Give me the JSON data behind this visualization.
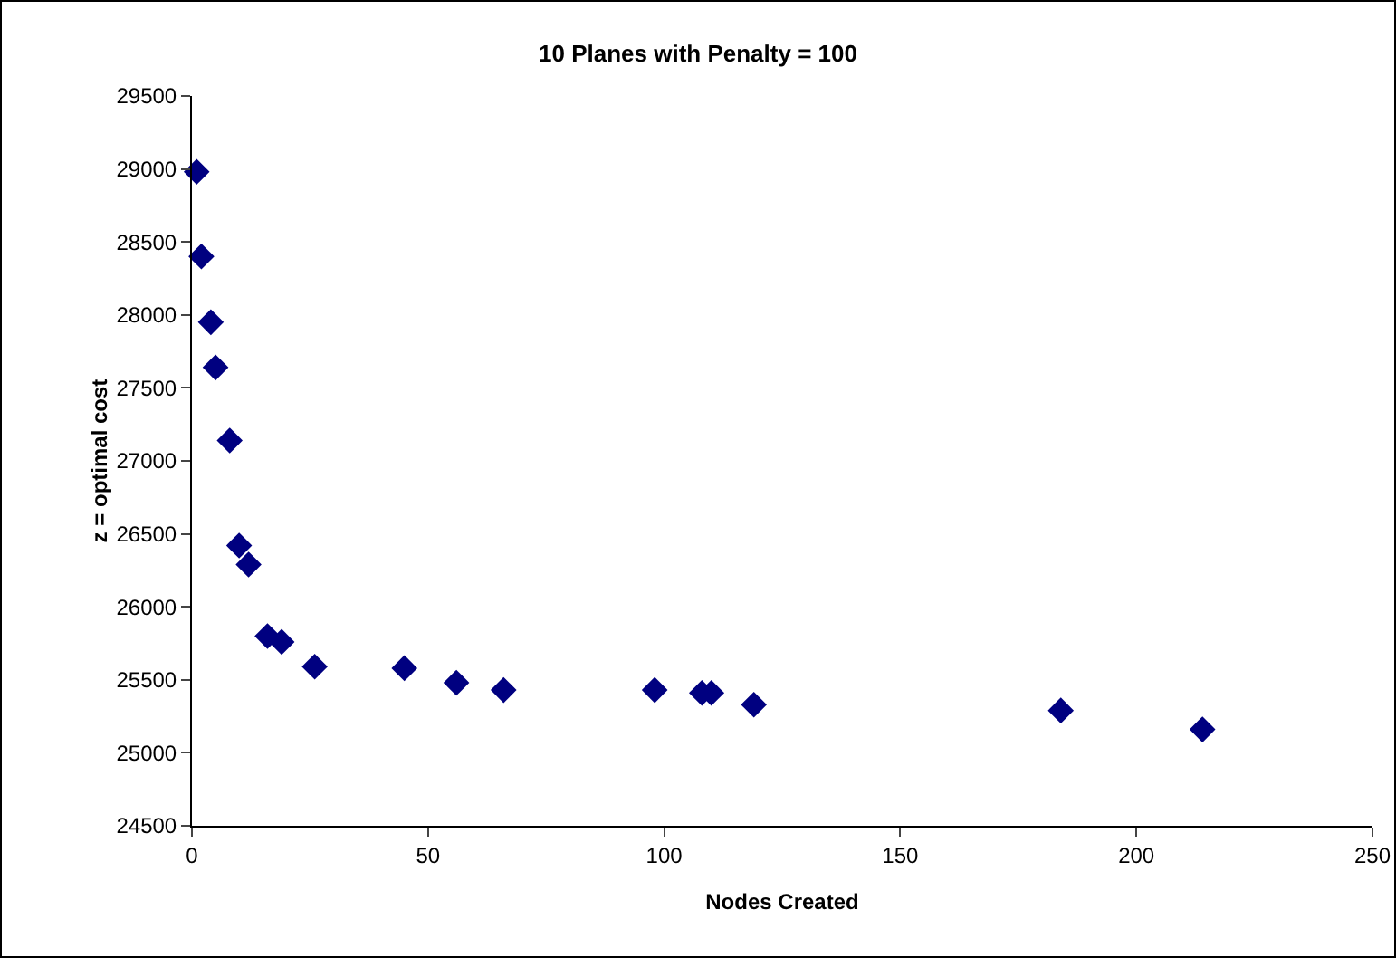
{
  "chart_data": {
    "type": "scatter",
    "title": "10 Planes with Penalty = 100",
    "xlabel": "Nodes Created",
    "ylabel": "z = optimal cost",
    "x": [
      1,
      2,
      4,
      5,
      8,
      10,
      12,
      16,
      19,
      26,
      45,
      56,
      66,
      98,
      108,
      110,
      119,
      184,
      214
    ],
    "values": [
      28980,
      28400,
      27950,
      27640,
      27140,
      26420,
      26290,
      25800,
      25760,
      25590,
      25580,
      25480,
      25430,
      25430,
      25410,
      25410,
      25330,
      25290,
      25160
    ],
    "color": "#000080",
    "marker": "diamond",
    "xlim": [
      0,
      250
    ],
    "xticks": [
      0,
      50,
      100,
      150,
      200,
      250
    ],
    "ylim": [
      24500,
      29500
    ],
    "yticks": [
      24500,
      25000,
      25500,
      26000,
      26500,
      27000,
      27500,
      28000,
      28500,
      29000,
      29500
    ],
    "grid": false,
    "legend": false
  }
}
